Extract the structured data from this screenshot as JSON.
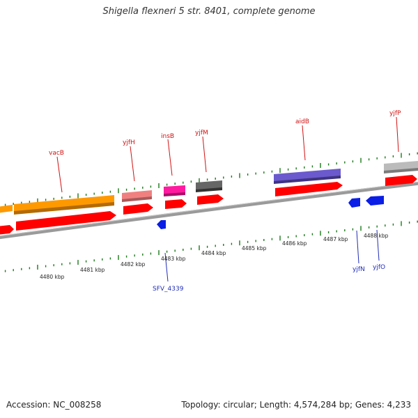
{
  "title": "Shigella flexneri 5 str. 8401, complete genome",
  "footer": {
    "accession": "Accession: NC_008258",
    "topology": "Topology: circular; Length: 4,574,284 bp; Genes: 4,233"
  },
  "colors": {
    "cds_red": "#ff0000",
    "backbone": "#888888",
    "tick_green": "#1a7a1a",
    "label_red": "#d21010",
    "label_blue": "#1f2cb8",
    "reverse_blue": "#0a1ee6"
  },
  "scale": {
    "ticks": [
      {
        "label": "4480 kbp"
      },
      {
        "label": "4481 kbp"
      },
      {
        "label": "4482 kbp"
      },
      {
        "label": "4483 kbp"
      },
      {
        "label": "4484 kbp"
      },
      {
        "label": "4485 kbp"
      },
      {
        "label": "4486 kbp"
      },
      {
        "label": "4487 kbp"
      },
      {
        "label": "4488 kbp"
      }
    ]
  },
  "genes_forward": [
    {
      "name": "vacB",
      "color": "#ff9900"
    },
    {
      "name": "yjfH",
      "color": "#f08080"
    },
    {
      "name": "insB",
      "color": "#ff1aa0"
    },
    {
      "name": "yjfM",
      "color": "#666666"
    },
    {
      "name": "aidB",
      "color": "#6a5acd"
    },
    {
      "name": "yjfP",
      "color": "#bbbbbb"
    }
  ],
  "genes_reverse": [
    {
      "name": "SFV_4339"
    },
    {
      "name": "yjfN"
    },
    {
      "name": "yjfO"
    }
  ]
}
